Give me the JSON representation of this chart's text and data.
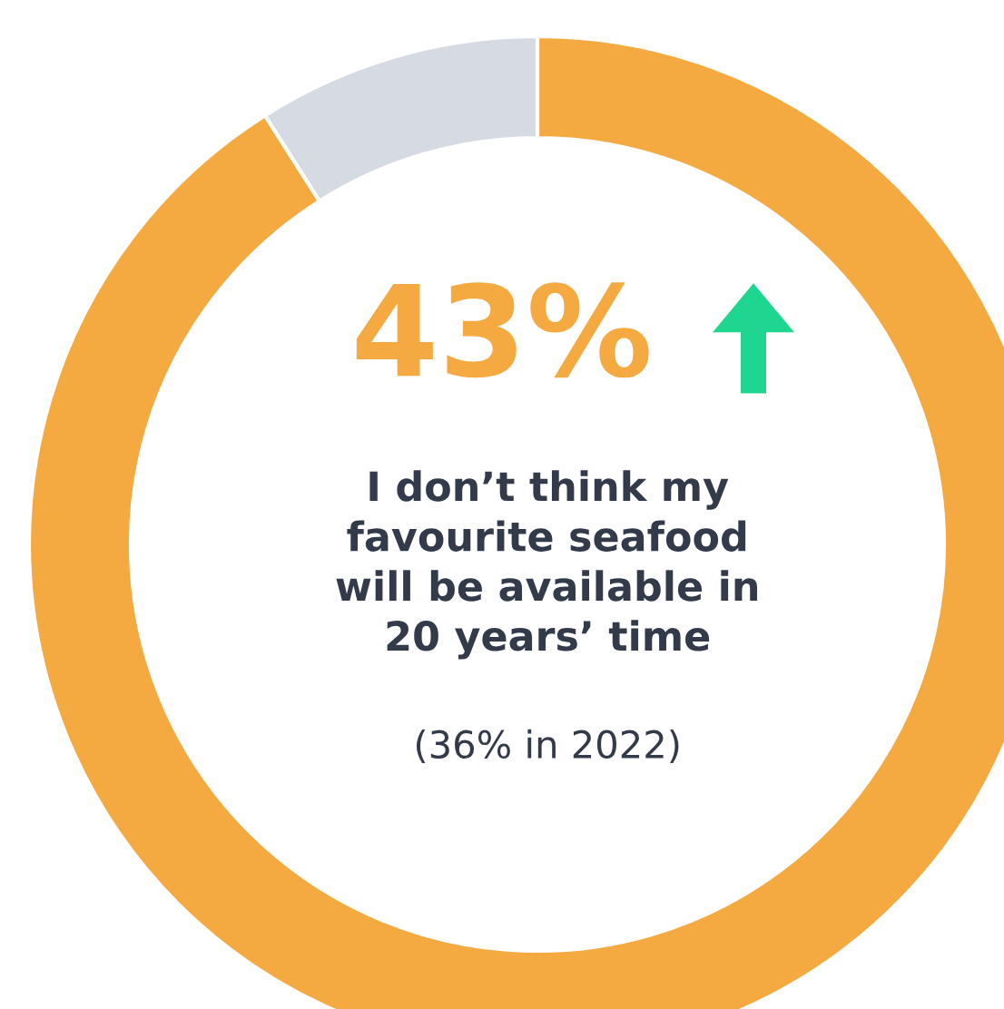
{
  "chart_data": {
    "type": "donut",
    "categories": [
      null,
      null
    ],
    "values": [
      91,
      9
    ],
    "colors": [
      "#f5a941",
      "#d5dae3"
    ],
    "annotations": [
      "43%",
      "I don’t think my\nfavourite seafood\nwill be available in\n20 years’ time",
      "(36% in 2022)"
    ]
  }
}
